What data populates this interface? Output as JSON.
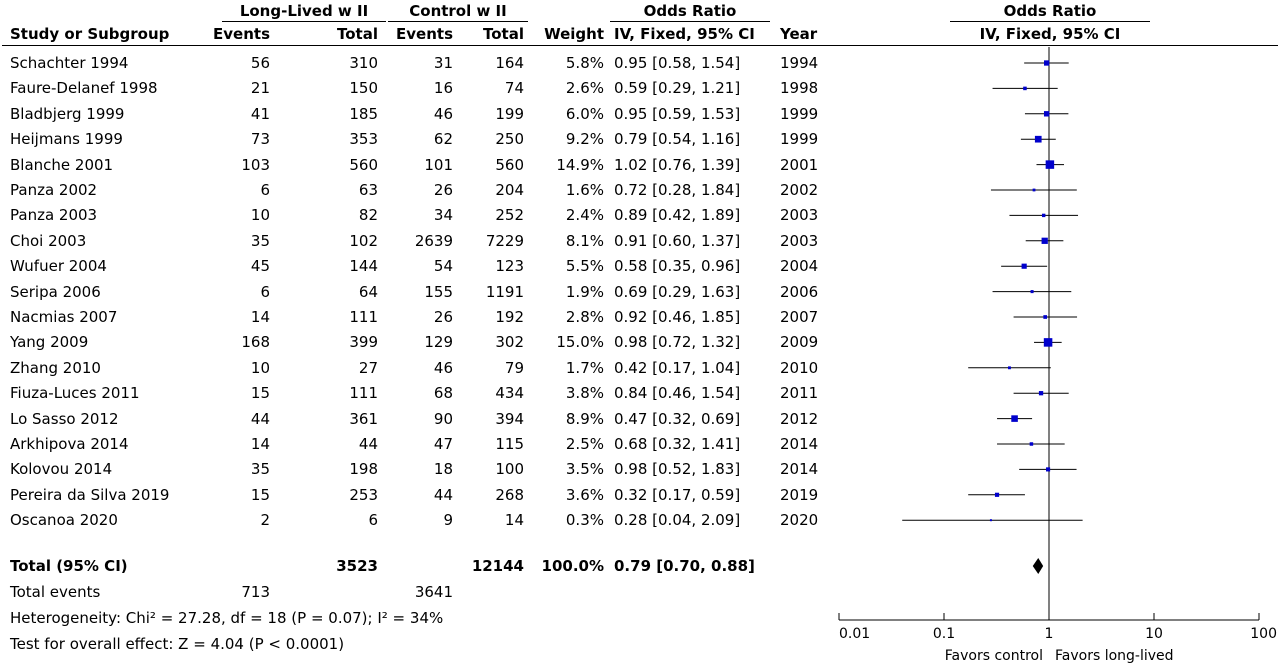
{
  "header": {
    "group_long": "Long-Lived w II",
    "group_control": "Control w II",
    "odds_ratio": "Odds Ratio",
    "col_study": "Study or Subgroup",
    "col_events_1": "Events",
    "col_total_1": "Total",
    "col_events_2": "Events",
    "col_total_2": "Total",
    "col_weight": "Weight",
    "col_method": "IV, Fixed, 95% CI",
    "col_year": "Year",
    "plot_title": "Odds Ratio",
    "plot_method": "IV, Fixed, 95% CI"
  },
  "studies": [
    {
      "name": "Schachter 1994",
      "ev1": "56",
      "tot1": "310",
      "ev2": "31",
      "tot2": "164",
      "weight": "5.8%",
      "ci": "0.95 [0.58, 1.54]",
      "year": "1994"
    },
    {
      "name": "Faure-Delanef 1998",
      "ev1": "21",
      "tot1": "150",
      "ev2": "16",
      "tot2": "74",
      "weight": "2.6%",
      "ci": "0.59 [0.29, 1.21]",
      "year": "1998"
    },
    {
      "name": "Bladbjerg 1999",
      "ev1": "41",
      "tot1": "185",
      "ev2": "46",
      "tot2": "199",
      "weight": "6.0%",
      "ci": "0.95 [0.59, 1.53]",
      "year": "1999"
    },
    {
      "name": "Heijmans 1999",
      "ev1": "73",
      "tot1": "353",
      "ev2": "62",
      "tot2": "250",
      "weight": "9.2%",
      "ci": "0.79 [0.54, 1.16]",
      "year": "1999"
    },
    {
      "name": "Blanche 2001",
      "ev1": "103",
      "tot1": "560",
      "ev2": "101",
      "tot2": "560",
      "weight": "14.9%",
      "ci": "1.02 [0.76, 1.39]",
      "year": "2001"
    },
    {
      "name": "Panza 2002",
      "ev1": "6",
      "tot1": "63",
      "ev2": "26",
      "tot2": "204",
      "weight": "1.6%",
      "ci": "0.72 [0.28, 1.84]",
      "year": "2002"
    },
    {
      "name": "Panza 2003",
      "ev1": "10",
      "tot1": "82",
      "ev2": "34",
      "tot2": "252",
      "weight": "2.4%",
      "ci": "0.89 [0.42, 1.89]",
      "year": "2003"
    },
    {
      "name": "Choi 2003",
      "ev1": "35",
      "tot1": "102",
      "ev2": "2639",
      "tot2": "7229",
      "weight": "8.1%",
      "ci": "0.91 [0.60, 1.37]",
      "year": "2003"
    },
    {
      "name": "Wufuer 2004",
      "ev1": "45",
      "tot1": "144",
      "ev2": "54",
      "tot2": "123",
      "weight": "5.5%",
      "ci": "0.58 [0.35, 0.96]",
      "year": "2004"
    },
    {
      "name": "Seripa 2006",
      "ev1": "6",
      "tot1": "64",
      "ev2": "155",
      "tot2": "1191",
      "weight": "1.9%",
      "ci": "0.69 [0.29, 1.63]",
      "year": "2006"
    },
    {
      "name": "Nacmias 2007",
      "ev1": "14",
      "tot1": "111",
      "ev2": "26",
      "tot2": "192",
      "weight": "2.8%",
      "ci": "0.92 [0.46, 1.85]",
      "year": "2007"
    },
    {
      "name": "Yang 2009",
      "ev1": "168",
      "tot1": "399",
      "ev2": "129",
      "tot2": "302",
      "weight": "15.0%",
      "ci": "0.98 [0.72, 1.32]",
      "year": "2009"
    },
    {
      "name": "Zhang 2010",
      "ev1": "10",
      "tot1": "27",
      "ev2": "46",
      "tot2": "79",
      "weight": "1.7%",
      "ci": "0.42 [0.17, 1.04]",
      "year": "2010"
    },
    {
      "name": "Fiuza-Luces 2011",
      "ev1": "15",
      "tot1": "111",
      "ev2": "68",
      "tot2": "434",
      "weight": "3.8%",
      "ci": "0.84 [0.46, 1.54]",
      "year": "2011"
    },
    {
      "name": "Lo Sasso 2012",
      "ev1": "44",
      "tot1": "361",
      "ev2": "90",
      "tot2": "394",
      "weight": "8.9%",
      "ci": "0.47 [0.32, 0.69]",
      "year": "2012"
    },
    {
      "name": "Arkhipova 2014",
      "ev1": "14",
      "tot1": "44",
      "ev2": "47",
      "tot2": "115",
      "weight": "2.5%",
      "ci": "0.68 [0.32, 1.41]",
      "year": "2014"
    },
    {
      "name": "Kolovou 2014",
      "ev1": "35",
      "tot1": "198",
      "ev2": "18",
      "tot2": "100",
      "weight": "3.5%",
      "ci": "0.98 [0.52, 1.83]",
      "year": "2014"
    },
    {
      "name": "Pereira da Silva 2019",
      "ev1": "15",
      "tot1": "253",
      "ev2": "44",
      "tot2": "268",
      "weight": "3.6%",
      "ci": "0.32 [0.17, 0.59]",
      "year": "2019"
    },
    {
      "name": "Oscanoa 2020",
      "ev1": "2",
      "tot1": "6",
      "ev2": "9",
      "tot2": "14",
      "weight": "0.3%",
      "ci": "0.28 [0.04, 2.09]",
      "year": "2020"
    }
  ],
  "total": {
    "label": "Total (95% CI)",
    "tot1": "3523",
    "tot2": "12144",
    "weight": "100.0%",
    "ci": "0.79 [0.70, 0.88]",
    "events_label": "Total events",
    "ev1": "713",
    "ev2": "3641",
    "heterogeneity": "Heterogeneity: Chi² = 27.28, df = 18 (P = 0.07); I² = 34%",
    "overall_effect": "Test for overall effect: Z = 4.04 (P < 0.0001)"
  },
  "axis": {
    "ticks": [
      "0.01",
      "0.1",
      "1",
      "10",
      "100"
    ],
    "favors_left": "Favors control",
    "favors_right": "Favors long-lived"
  },
  "chart_data": {
    "type": "forest",
    "scale": "log",
    "xlim": [
      0.01,
      100
    ],
    "reference_line": 1,
    "points": [
      {
        "study": "Schachter 1994",
        "or": 0.95,
        "lo": 0.58,
        "hi": 1.54,
        "weight": 5.8
      },
      {
        "study": "Faure-Delanef 1998",
        "or": 0.59,
        "lo": 0.29,
        "hi": 1.21,
        "weight": 2.6
      },
      {
        "study": "Bladbjerg 1999",
        "or": 0.95,
        "lo": 0.59,
        "hi": 1.53,
        "weight": 6.0
      },
      {
        "study": "Heijmans 1999",
        "or": 0.79,
        "lo": 0.54,
        "hi": 1.16,
        "weight": 9.2
      },
      {
        "study": "Blanche 2001",
        "or": 1.02,
        "lo": 0.76,
        "hi": 1.39,
        "weight": 14.9
      },
      {
        "study": "Panza 2002",
        "or": 0.72,
        "lo": 0.28,
        "hi": 1.84,
        "weight": 1.6
      },
      {
        "study": "Panza 2003",
        "or": 0.89,
        "lo": 0.42,
        "hi": 1.89,
        "weight": 2.4
      },
      {
        "study": "Choi 2003",
        "or": 0.91,
        "lo": 0.6,
        "hi": 1.37,
        "weight": 8.1
      },
      {
        "study": "Wufuer 2004",
        "or": 0.58,
        "lo": 0.35,
        "hi": 0.96,
        "weight": 5.5
      },
      {
        "study": "Seripa 2006",
        "or": 0.69,
        "lo": 0.29,
        "hi": 1.63,
        "weight": 1.9
      },
      {
        "study": "Nacmias 2007",
        "or": 0.92,
        "lo": 0.46,
        "hi": 1.85,
        "weight": 2.8
      },
      {
        "study": "Yang 2009",
        "or": 0.98,
        "lo": 0.72,
        "hi": 1.32,
        "weight": 15.0
      },
      {
        "study": "Zhang 2010",
        "or": 0.42,
        "lo": 0.17,
        "hi": 1.04,
        "weight": 1.7
      },
      {
        "study": "Fiuza-Luces 2011",
        "or": 0.84,
        "lo": 0.46,
        "hi": 1.54,
        "weight": 3.8
      },
      {
        "study": "Lo Sasso 2012",
        "or": 0.47,
        "lo": 0.32,
        "hi": 0.69,
        "weight": 8.9
      },
      {
        "study": "Arkhipova 2014",
        "or": 0.68,
        "lo": 0.32,
        "hi": 1.41,
        "weight": 2.5
      },
      {
        "study": "Kolovou 2014",
        "or": 0.98,
        "lo": 0.52,
        "hi": 1.83,
        "weight": 3.5
      },
      {
        "study": "Pereira da Silva 2019",
        "or": 0.32,
        "lo": 0.17,
        "hi": 0.59,
        "weight": 3.6
      },
      {
        "study": "Oscanoa 2020",
        "or": 0.28,
        "lo": 0.04,
        "hi": 2.09,
        "weight": 0.3
      }
    ],
    "summary": {
      "or": 0.79,
      "lo": 0.7,
      "hi": 0.88
    },
    "colors": {
      "square": "#0000cc",
      "line": "#000000",
      "diamond": "#000000"
    }
  }
}
